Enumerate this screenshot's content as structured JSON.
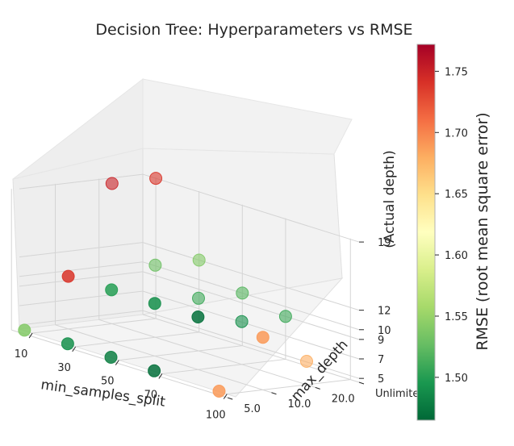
{
  "chart_data": {
    "type": "scatter",
    "title": "Decision Tree: Hyperparameters vs RMSE",
    "x": {
      "label": "min_samples_split",
      "ticks": [
        "10",
        "30",
        "50",
        "70",
        "100"
      ]
    },
    "y": {
      "label": "max_depth",
      "ticks": [
        "5.0",
        "10.0",
        "20.0",
        "Unlimited"
      ]
    },
    "z": {
      "label": "(Actual depth)",
      "ticks": [
        "5",
        "7",
        "9",
        "10",
        "12",
        "19"
      ]
    },
    "colorbar": {
      "label": "RMSE (root mean square error)",
      "colormap": "RdYlGn_r",
      "range": [
        1.465,
        1.772
      ],
      "ticks": [
        "1.50",
        "1.55",
        "1.60",
        "1.65",
        "1.70",
        "1.75"
      ]
    },
    "points": [
      {
        "min_samples_split": 10,
        "max_depth": "5.0",
        "actual_depth": 5,
        "rmse": 1.54
      },
      {
        "min_samples_split": 30,
        "max_depth": "5.0",
        "actual_depth": 5,
        "rmse": 1.49
      },
      {
        "min_samples_split": 50,
        "max_depth": "5.0",
        "actual_depth": 5,
        "rmse": 1.48
      },
      {
        "min_samples_split": 70,
        "max_depth": "5.0",
        "actual_depth": 5,
        "rmse": 1.47
      },
      {
        "min_samples_split": 100,
        "max_depth": "5.0",
        "actual_depth": 5,
        "rmse": 1.69
      },
      {
        "min_samples_split": 10,
        "max_depth": "10.0",
        "actual_depth": 10,
        "rmse": 1.74
      },
      {
        "min_samples_split": 30,
        "max_depth": "10.0",
        "actual_depth": 10,
        "rmse": 1.5
      },
      {
        "min_samples_split": 50,
        "max_depth": "10.0",
        "actual_depth": 10,
        "rmse": 1.49
      },
      {
        "min_samples_split": 70,
        "max_depth": "10.0",
        "actual_depth": 10,
        "rmse": 1.47
      },
      {
        "min_samples_split": 100,
        "max_depth": "10.0",
        "actual_depth": 10,
        "rmse": 1.69
      },
      {
        "min_samples_split": 10,
        "max_depth": "20.0",
        "actual_depth": 19,
        "rmse": 1.75
      },
      {
        "min_samples_split": 30,
        "max_depth": "20.0",
        "actual_depth": 12,
        "rmse": 1.53
      },
      {
        "min_samples_split": 50,
        "max_depth": "20.0",
        "actual_depth": 10,
        "rmse": 1.51
      },
      {
        "min_samples_split": 70,
        "max_depth": "20.0",
        "actual_depth": 9,
        "rmse": 1.49
      },
      {
        "min_samples_split": 100,
        "max_depth": "20.0",
        "actual_depth": 7,
        "rmse": 1.68
      },
      {
        "min_samples_split": 10,
        "max_depth": "Unlimited",
        "actual_depth": 19,
        "rmse": 1.74
      },
      {
        "min_samples_split": 30,
        "max_depth": "Unlimited",
        "actual_depth": 12,
        "rmse": 1.54
      },
      {
        "min_samples_split": 50,
        "max_depth": "Unlimited",
        "actual_depth": 10,
        "rmse": 1.52
      },
      {
        "min_samples_split": 70,
        "max_depth": "Unlimited",
        "actual_depth": 9,
        "rmse": 1.51
      }
    ]
  }
}
